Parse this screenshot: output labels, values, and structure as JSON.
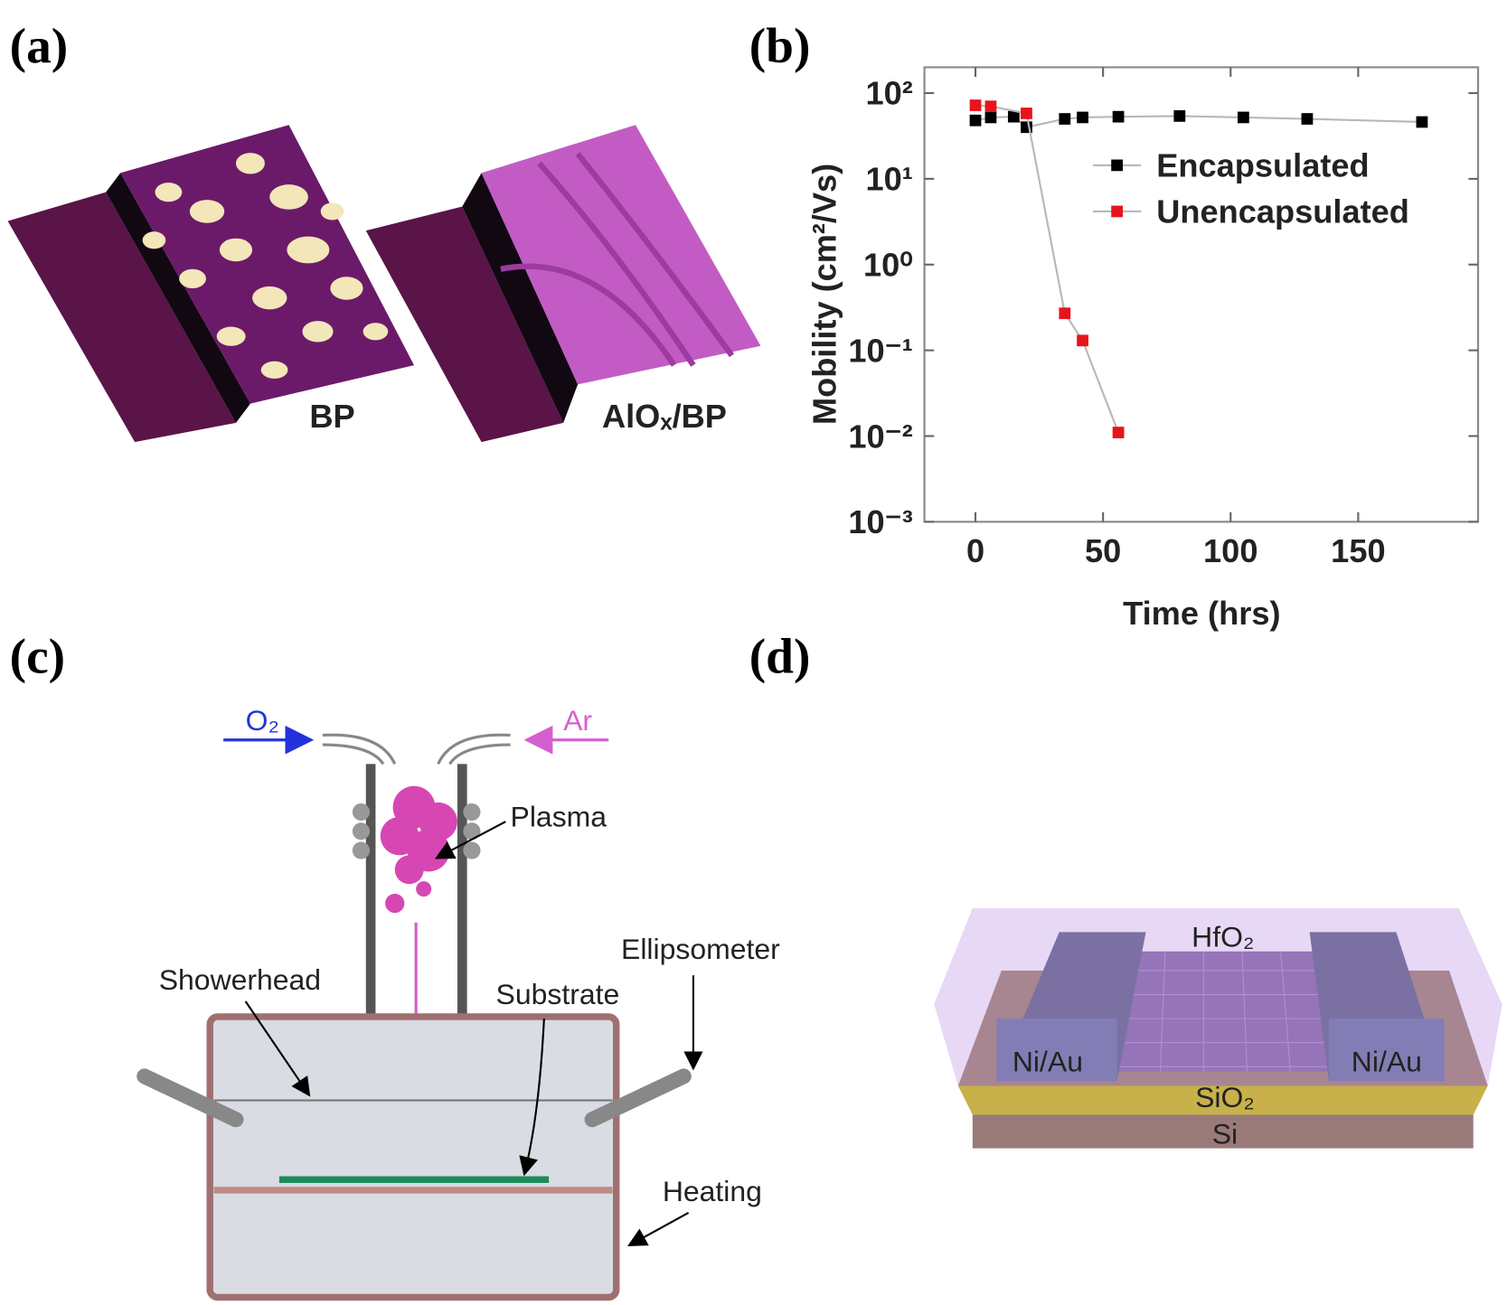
{
  "panels": {
    "a": {
      "label": "(a)",
      "left_caption": "BP",
      "right_caption": "AlOₓ/BP"
    },
    "b": {
      "label": "(b)"
    },
    "c": {
      "label": "(c)",
      "o2": "O₂",
      "ar": "Ar",
      "plasma": "Plasma",
      "showerhead": "Showerhead",
      "substrate": "Substrate",
      "ellipsometer": "Ellipsometer",
      "heating": "Heating"
    },
    "d": {
      "label": "(d)",
      "top_layer": "HfO₂",
      "left_contact": "Ni/Au",
      "right_contact": "Ni/Au",
      "oxide": "SiO₂",
      "substrate": "Si"
    }
  },
  "chart_data": {
    "type": "scatter",
    "x_label": "Time (hrs)",
    "y_label": "Mobility (cm²/Vs)",
    "xlim": [
      -20,
      197
    ],
    "xticks": [
      0,
      50,
      100,
      150
    ],
    "ylim": [
      0.001,
      200
    ],
    "log_y": true,
    "yticks": [
      {
        "value": 0.001,
        "label": "10⁻³"
      },
      {
        "value": 0.01,
        "label": "10⁻²"
      },
      {
        "value": 0.1,
        "label": "10⁻¹"
      },
      {
        "value": 1,
        "label": "10⁰"
      },
      {
        "value": 10,
        "label": "10¹"
      },
      {
        "value": 100,
        "label": "10²"
      }
    ],
    "line_color": "#b8b8b8",
    "legend": "upper right",
    "series": [
      {
        "name": "Encapsulated",
        "color": "#000000",
        "x": [
          0,
          6,
          15,
          20,
          35,
          42,
          56,
          80,
          105,
          130,
          175
        ],
        "values": [
          48,
          52,
          53,
          40,
          50,
          52,
          53,
          54,
          52,
          50,
          46
        ]
      },
      {
        "name": "Unencapsulated",
        "color": "#e8141c",
        "x": [
          0,
          6,
          20,
          35,
          42,
          56
        ],
        "values": [
          72,
          70,
          58,
          0.27,
          0.13,
          0.011
        ]
      }
    ]
  }
}
